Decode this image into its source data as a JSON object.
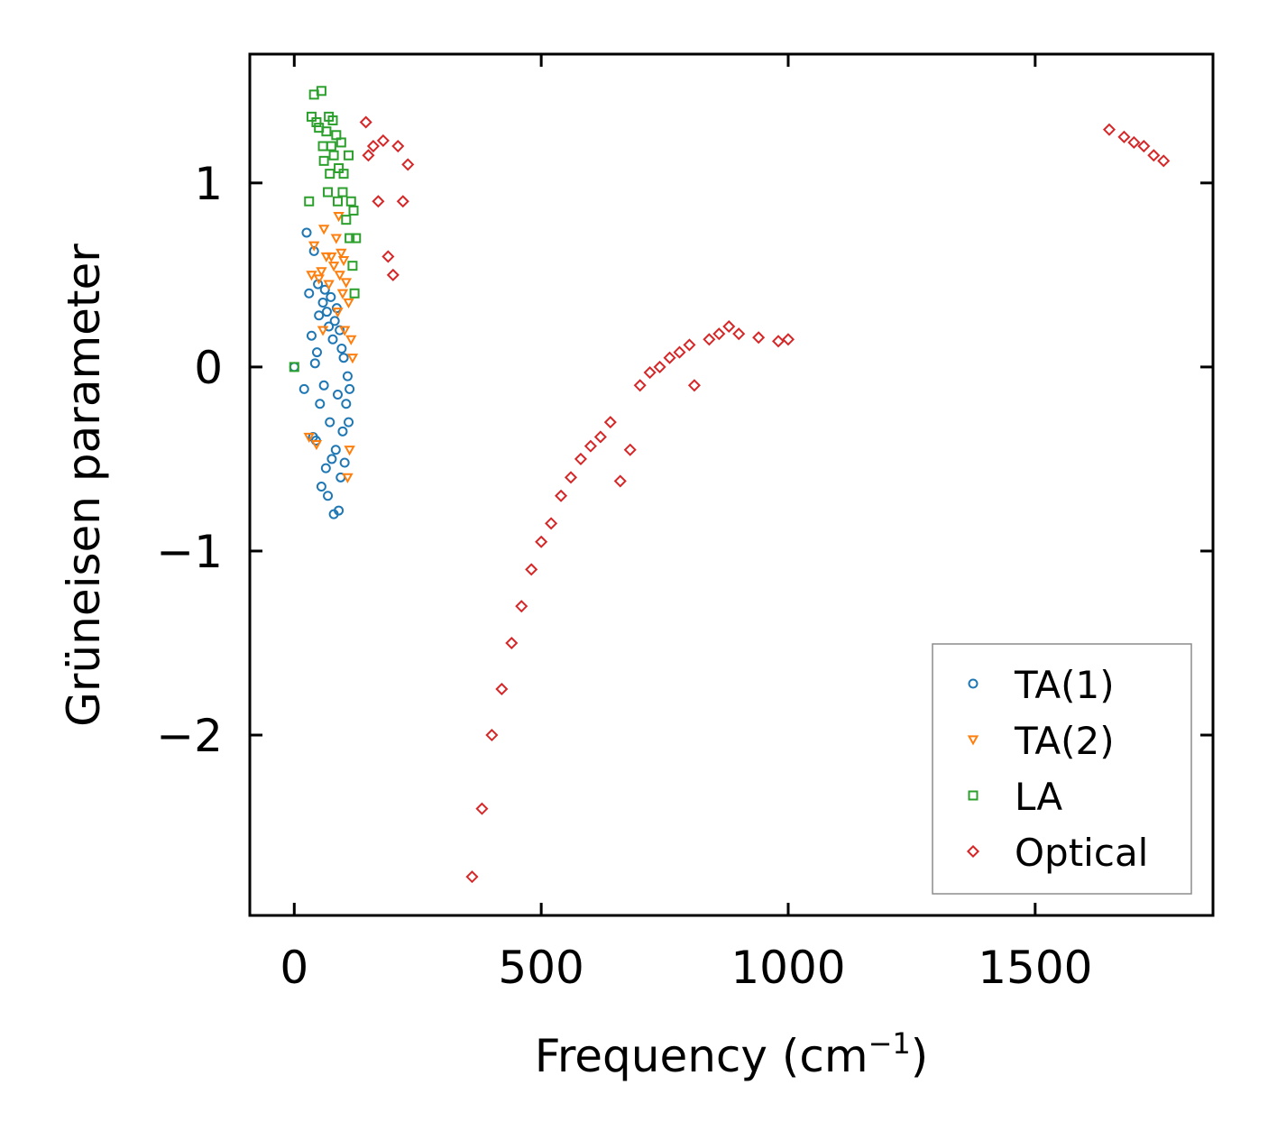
{
  "chart_data": {
    "type": "scatter",
    "title": "",
    "xlabel": "Frequency (cm",
    "xlabel_superscript": "−1",
    "xlabel_suffix": ")",
    "ylabel": "Grüneisen parameter",
    "xlim": [
      -90,
      1860
    ],
    "ylim": [
      -2.98,
      1.7
    ],
    "xticks": [
      0,
      500,
      1000,
      1500
    ],
    "xtick_labels": [
      "0",
      "500",
      "1000",
      "1500"
    ],
    "yticks": [
      -2,
      -1,
      0,
      1
    ],
    "ytick_labels": [
      "−2",
      "−1",
      "0",
      "1"
    ],
    "grid": false,
    "legend_position": "lower-right",
    "series": [
      {
        "name": "TA(1)",
        "marker": "circle",
        "color": "#1f77b4",
        "points": [
          [
            0,
            0
          ],
          [
            20,
            -0.12
          ],
          [
            25,
            0.73
          ],
          [
            30,
            0.4
          ],
          [
            35,
            0.17
          ],
          [
            38,
            -0.38
          ],
          [
            40,
            0.63
          ],
          [
            42,
            0.02
          ],
          [
            44,
            -0.4
          ],
          [
            46,
            0.08
          ],
          [
            48,
            0.45
          ],
          [
            50,
            0.28
          ],
          [
            52,
            -0.2
          ],
          [
            55,
            -0.65
          ],
          [
            58,
            0.35
          ],
          [
            60,
            -0.1
          ],
          [
            62,
            0.42
          ],
          [
            64,
            -0.55
          ],
          [
            66,
            0.3
          ],
          [
            68,
            -0.7
          ],
          [
            70,
            0.22
          ],
          [
            72,
            -0.3
          ],
          [
            74,
            0.38
          ],
          [
            76,
            -0.5
          ],
          [
            78,
            0.15
          ],
          [
            80,
            -0.8
          ],
          [
            82,
            0.25
          ],
          [
            84,
            -0.45
          ],
          [
            86,
            0.32
          ],
          [
            88,
            -0.15
          ],
          [
            90,
            -0.78
          ],
          [
            92,
            0.2
          ],
          [
            94,
            -0.6
          ],
          [
            96,
            0.1
          ],
          [
            98,
            -0.35
          ],
          [
            100,
            0.05
          ],
          [
            102,
            -0.52
          ],
          [
            105,
            -0.2
          ],
          [
            108,
            -0.05
          ],
          [
            110,
            -0.3
          ],
          [
            112,
            -0.12
          ]
        ]
      },
      {
        "name": "TA(2)",
        "marker": "triangle-down",
        "color": "#ff7f0e",
        "points": [
          [
            30,
            -0.38
          ],
          [
            35,
            0.5
          ],
          [
            40,
            0.66
          ],
          [
            45,
            -0.42
          ],
          [
            50,
            0.48
          ],
          [
            55,
            0.52
          ],
          [
            58,
            0.2
          ],
          [
            60,
            0.75
          ],
          [
            65,
            0.6
          ],
          [
            70,
            0.45
          ],
          [
            75,
            0.6
          ],
          [
            80,
            0.55
          ],
          [
            85,
            0.7
          ],
          [
            88,
            0.3
          ],
          [
            90,
            0.82
          ],
          [
            92,
            0.5
          ],
          [
            95,
            0.62
          ],
          [
            98,
            0.4
          ],
          [
            100,
            0.58
          ],
          [
            102,
            0.2
          ],
          [
            105,
            0.46
          ],
          [
            108,
            -0.6
          ],
          [
            110,
            0.35
          ],
          [
            112,
            -0.45
          ],
          [
            115,
            0.15
          ],
          [
            118,
            0.05
          ]
        ]
      },
      {
        "name": "LA",
        "marker": "square",
        "color": "#2ca02c",
        "points": [
          [
            0,
            0
          ],
          [
            30,
            0.9
          ],
          [
            35,
            1.36
          ],
          [
            40,
            1.48
          ],
          [
            45,
            1.33
          ],
          [
            50,
            1.3
          ],
          [
            55,
            1.5
          ],
          [
            58,
            1.2
          ],
          [
            60,
            1.12
          ],
          [
            65,
            1.28
          ],
          [
            68,
            0.95
          ],
          [
            70,
            1.36
          ],
          [
            72,
            1.05
          ],
          [
            75,
            1.2
          ],
          [
            78,
            1.34
          ],
          [
            80,
            1.15
          ],
          [
            85,
            1.26
          ],
          [
            88,
            0.9
          ],
          [
            90,
            1.08
          ],
          [
            95,
            1.22
          ],
          [
            98,
            0.95
          ],
          [
            100,
            1.05
          ],
          [
            105,
            0.8
          ],
          [
            110,
            1.15
          ],
          [
            112,
            0.7
          ],
          [
            115,
            0.9
          ],
          [
            118,
            0.55
          ],
          [
            120,
            0.85
          ],
          [
            122,
            0.4
          ],
          [
            125,
            0.7
          ]
        ]
      },
      {
        "name": "Optical",
        "marker": "diamond",
        "color": "#d62728",
        "points": [
          [
            145,
            1.33
          ],
          [
            150,
            1.15
          ],
          [
            160,
            1.2
          ],
          [
            170,
            0.9
          ],
          [
            180,
            1.23
          ],
          [
            190,
            0.6
          ],
          [
            200,
            0.5
          ],
          [
            210,
            1.2
          ],
          [
            220,
            0.9
          ],
          [
            230,
            1.1
          ],
          [
            360,
            -2.77
          ],
          [
            380,
            -2.4
          ],
          [
            400,
            -2.0
          ],
          [
            420,
            -1.75
          ],
          [
            440,
            -1.5
          ],
          [
            460,
            -1.3
          ],
          [
            480,
            -1.1
          ],
          [
            500,
            -0.95
          ],
          [
            520,
            -0.85
          ],
          [
            540,
            -0.7
          ],
          [
            560,
            -0.6
          ],
          [
            580,
            -0.5
          ],
          [
            600,
            -0.43
          ],
          [
            620,
            -0.38
          ],
          [
            640,
            -0.3
          ],
          [
            660,
            -0.62
          ],
          [
            680,
            -0.45
          ],
          [
            700,
            -0.1
          ],
          [
            720,
            -0.03
          ],
          [
            740,
            0.0
          ],
          [
            760,
            0.05
          ],
          [
            780,
            0.08
          ],
          [
            800,
            0.12
          ],
          [
            810,
            -0.1
          ],
          [
            840,
            0.15
          ],
          [
            860,
            0.18
          ],
          [
            880,
            0.22
          ],
          [
            900,
            0.18
          ],
          [
            940,
            0.16
          ],
          [
            980,
            0.14
          ],
          [
            1000,
            0.15
          ],
          [
            1650,
            1.29
          ],
          [
            1680,
            1.25
          ],
          [
            1700,
            1.22
          ],
          [
            1720,
            1.2
          ],
          [
            1740,
            1.15
          ],
          [
            1760,
            1.12
          ]
        ]
      }
    ]
  }
}
